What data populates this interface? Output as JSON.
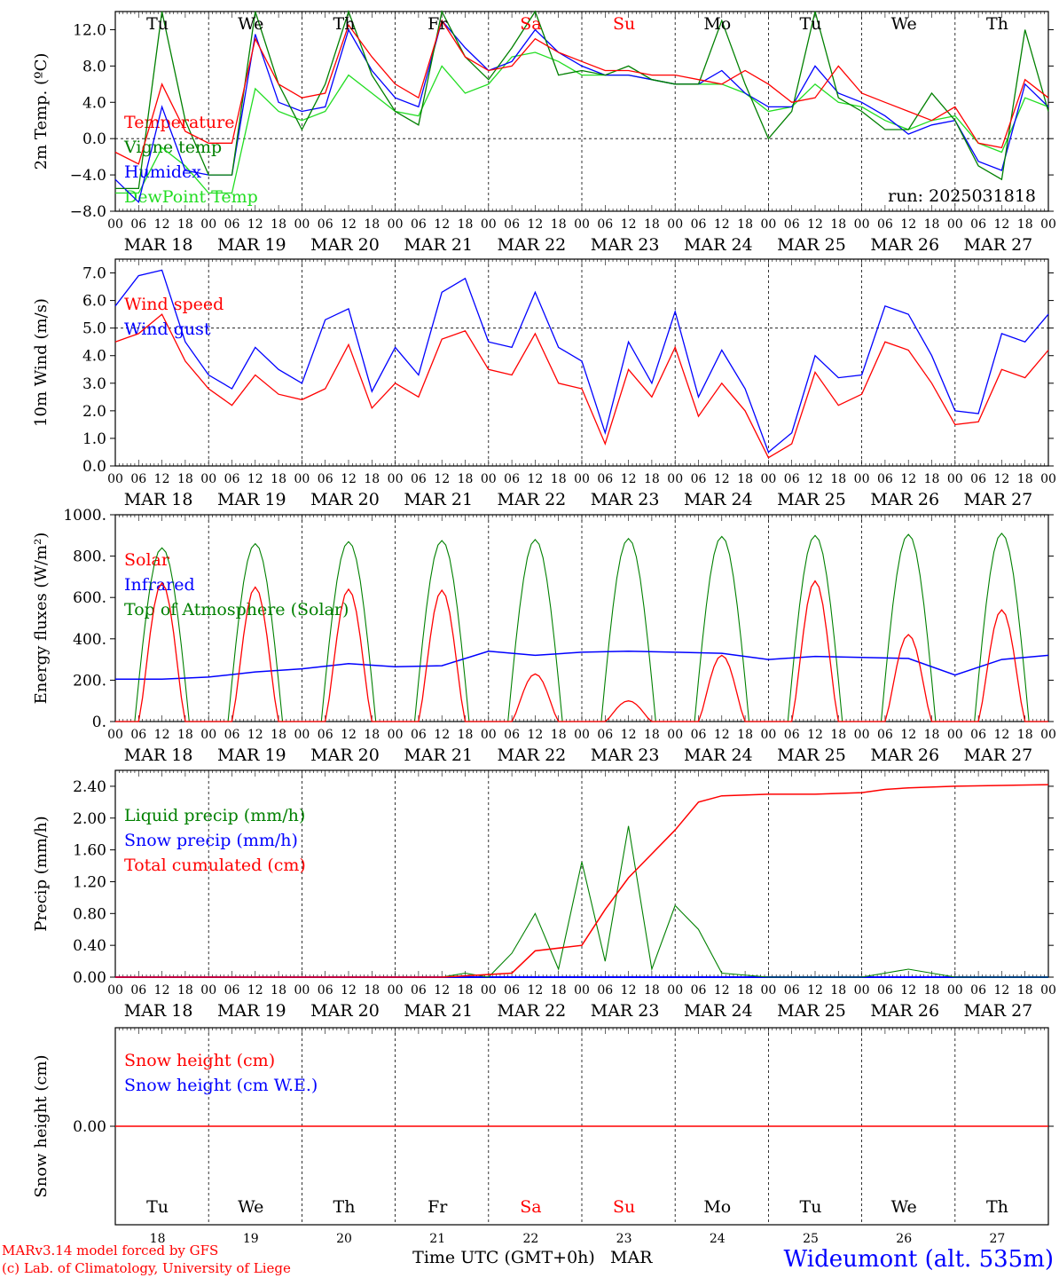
{
  "station": "Wideumont (alt. 535m)",
  "credits": [
    "MARv3.14 model forced by GFS",
    "(c) Lab. of Climatology, University of Liege"
  ],
  "run_label": "run: 2025031818",
  "x_axis_title": "Time UTC (GMT+0h)",
  "month_label": "MAR",
  "hour_ticks": [
    "00",
    "06",
    "12",
    "18"
  ],
  "day_labels": [
    "MAR 18",
    "MAR 19",
    "MAR 20",
    "MAR 21",
    "MAR 22",
    "MAR 23",
    "MAR 24",
    "MAR 25",
    "MAR 26",
    "MAR 27"
  ],
  "weekdays": [
    "Tu",
    "We",
    "Th",
    "Fr",
    "Sa",
    "Su",
    "Mo",
    "Tu",
    "We",
    "Th"
  ],
  "weekend_flags": [
    false,
    false,
    false,
    false,
    true,
    true,
    false,
    false,
    false,
    false
  ],
  "day_numbers": [
    "18",
    "19",
    "20",
    "21",
    "22",
    "23",
    "24",
    "25",
    "26",
    "27"
  ],
  "colors": {
    "red": "#ff0000",
    "green": "#008000",
    "blue": "#0000ff",
    "lightgreen": "#22dd22",
    "axis": "#000000"
  },
  "chart_data": [
    {
      "type": "line",
      "ylabel": "2m Temp. (ºC)",
      "ylim": [
        -8,
        14
      ],
      "yticks": [
        "12.0",
        "8.0",
        "4.0",
        "0.0",
        "−4.0",
        "−8.0"
      ],
      "ytick_values": [
        12,
        8,
        4,
        0,
        -4,
        -8
      ],
      "x_hours": [
        0,
        6,
        12,
        18,
        24,
        30,
        36,
        42,
        48,
        54,
        60,
        66,
        72,
        78,
        84,
        90,
        96,
        102,
        108,
        114,
        120,
        126,
        132,
        138,
        144,
        150,
        156,
        162,
        168,
        174,
        180,
        186,
        192,
        198,
        204,
        210,
        216,
        222,
        228,
        234,
        240
      ],
      "ref_line": 0,
      "series": [
        {
          "name": "Temperature",
          "color": "#ff0000",
          "values": [
            -1.5,
            -2.8,
            6,
            0.8,
            -0.5,
            -0.5,
            11,
            6,
            4.5,
            5,
            12.5,
            9,
            6,
            4.5,
            13,
            9,
            7.5,
            8,
            11,
            9.5,
            8.5,
            7.5,
            7.5,
            7,
            7,
            6.5,
            6,
            7.5,
            6,
            4,
            4.5,
            8,
            5,
            4,
            3,
            2,
            3.5,
            -0.5,
            -1,
            6.5,
            4.5
          ]
        },
        {
          "name": "Vigne temp",
          "color": "#008000",
          "values": [
            -5.5,
            -5.5,
            14,
            2,
            -4,
            -4,
            14,
            6,
            1,
            6,
            14,
            7,
            3,
            1.5,
            14,
            9,
            6.5,
            10,
            14,
            7,
            7.5,
            7,
            8,
            6.5,
            6,
            6,
            13,
            6,
            0,
            3,
            14,
            4.5,
            3,
            1,
            1,
            5,
            2,
            -3,
            -4.5,
            12,
            3
          ]
        },
        {
          "name": "Humidex",
          "color": "#0000ff",
          "values": [
            -4.5,
            -7,
            3.5,
            -3.5,
            -4,
            -4,
            11.5,
            4,
            3,
            3.5,
            12,
            7.5,
            4.5,
            3.5,
            13,
            10,
            7.5,
            8.5,
            12,
            9.5,
            8,
            7,
            7,
            6.5,
            6,
            6,
            7.5,
            5,
            3.5,
            3.5,
            8,
            5,
            4,
            2.5,
            0.5,
            1.5,
            2,
            -2.5,
            -3.5,
            6,
            3.5
          ]
        },
        {
          "name": "DewPoint Temp",
          "color": "#22dd22",
          "values": [
            -6,
            -6,
            -1,
            -3,
            -6,
            -6,
            5.5,
            3,
            2,
            3,
            7,
            5,
            3,
            2.5,
            8,
            5,
            6,
            9,
            9.5,
            8.5,
            7,
            7,
            7,
            6.5,
            6,
            6,
            6,
            5,
            3,
            3.5,
            6,
            4,
            3.5,
            2,
            1,
            2,
            2.5,
            -0.5,
            -1.5,
            4.5,
            3.5
          ]
        }
      ]
    },
    {
      "type": "line",
      "ylabel": "10m Wind (m/s)",
      "ylim": [
        0,
        7.5
      ],
      "yticks": [
        "7.0",
        "6.0",
        "5.0",
        "4.0",
        "3.0",
        "2.0",
        "1.0",
        "0.0"
      ],
      "ytick_values": [
        7,
        6,
        5,
        4,
        3,
        2,
        1,
        0
      ],
      "x_hours": [
        0,
        6,
        12,
        18,
        24,
        30,
        36,
        42,
        48,
        54,
        60,
        66,
        72,
        78,
        84,
        90,
        96,
        102,
        108,
        114,
        120,
        126,
        132,
        138,
        144,
        150,
        156,
        162,
        168,
        174,
        180,
        186,
        192,
        198,
        204,
        210,
        216,
        222,
        228,
        234,
        240
      ],
      "ref_line": 5,
      "series": [
        {
          "name": "Wind speed",
          "color": "#ff0000",
          "values": [
            4.5,
            4.8,
            5.5,
            3.8,
            2.8,
            2.2,
            3.3,
            2.6,
            2.4,
            2.8,
            4.4,
            2.1,
            3,
            2.5,
            4.6,
            4.9,
            3.5,
            3.3,
            4.8,
            3,
            2.8,
            0.8,
            3.5,
            2.5,
            4.3,
            1.8,
            3,
            2,
            0.3,
            0.8,
            3.4,
            2.2,
            2.6,
            4.5,
            4.2,
            3,
            1.5,
            1.6,
            3.5,
            3.2,
            4.2
          ]
        },
        {
          "name": "Wind gust",
          "color": "#0000ff",
          "values": [
            5.8,
            6.9,
            7.1,
            4.5,
            3.3,
            2.8,
            4.3,
            3.5,
            3,
            5.3,
            5.7,
            2.7,
            4.3,
            3.3,
            6.3,
            6.8,
            4.5,
            4.3,
            6.3,
            4.3,
            3.8,
            1.2,
            4.5,
            3,
            5.6,
            2.5,
            4.2,
            2.8,
            0.5,
            1.2,
            4,
            3.2,
            3.3,
            5.8,
            5.5,
            4,
            2,
            1.9,
            4.8,
            4.5,
            5.5
          ]
        }
      ]
    },
    {
      "type": "line",
      "ylabel": "Energy fluxes (W/m²)",
      "ylim": [
        0,
        1000
      ],
      "yticks": [
        "1000.",
        "800.",
        "600.",
        "400.",
        "200.",
        "0."
      ],
      "ytick_values": [
        1000,
        800,
        600,
        400,
        200,
        0
      ],
      "solar_day_peaks": [
        670,
        650,
        640,
        635,
        230,
        100,
        320,
        680,
        420,
        540
      ],
      "toa_day_peaks": [
        840,
        860,
        870,
        875,
        880,
        885,
        895,
        900,
        905,
        910
      ],
      "series": [
        {
          "name": "Solar",
          "color": "#ff0000"
        },
        {
          "name": "Infrared",
          "color": "#0000ff",
          "x_hours": [
            0,
            12,
            24,
            36,
            48,
            60,
            72,
            84,
            96,
            108,
            120,
            132,
            144,
            156,
            168,
            180,
            192,
            204,
            216,
            228,
            240
          ],
          "values": [
            205,
            205,
            215,
            240,
            255,
            280,
            265,
            270,
            340,
            320,
            335,
            340,
            335,
            330,
            300,
            315,
            310,
            305,
            225,
            300,
            320
          ]
        },
        {
          "name": "Top of Atmosphere (Solar)",
          "color": "#008000"
        }
      ]
    },
    {
      "type": "line",
      "ylabel": "Precip (mm/h)",
      "ylim": [
        0,
        2.6
      ],
      "yticks": [
        "2.40",
        "2.00",
        "1.60",
        "1.20",
        "0.80",
        "0.40",
        "0.00"
      ],
      "ytick_values": [
        2.4,
        2.0,
        1.6,
        1.2,
        0.8,
        0.4,
        0
      ],
      "series": [
        {
          "name": "Liquid precip (mm/h)",
          "color": "#008000",
          "x_hours": [
            0,
            84,
            90,
            96,
            102,
            108,
            114,
            120,
            126,
            132,
            138,
            144,
            150,
            156,
            168,
            192,
            204,
            216,
            240
          ],
          "values": [
            0,
            0,
            0.05,
            0,
            0.3,
            0.8,
            0.1,
            1.45,
            0.2,
            1.9,
            0.1,
            0.9,
            0.6,
            0.05,
            0,
            0,
            0.1,
            0,
            0
          ]
        },
        {
          "name": "Snow precip (mm/h)",
          "color": "#0000ff",
          "x_hours": [
            0,
            240
          ],
          "values": [
            0,
            0
          ]
        },
        {
          "name": "Total cumulated (cm)",
          "color": "#ff0000",
          "x_hours": [
            0,
            84,
            102,
            108,
            120,
            126,
            132,
            138,
            144,
            150,
            156,
            168,
            180,
            192,
            198,
            204,
            216,
            240
          ],
          "values": [
            0,
            0,
            0.05,
            0.33,
            0.4,
            0.85,
            1.25,
            1.55,
            1.85,
            2.2,
            2.28,
            2.3,
            2.3,
            2.32,
            2.36,
            2.38,
            2.4,
            2.42
          ]
        }
      ]
    },
    {
      "type": "line",
      "ylabel": "Snow height (cm)",
      "yticks": [
        "0.00"
      ],
      "ytick_values": [
        0
      ],
      "ylim": [
        -1,
        1
      ],
      "series": [
        {
          "name": "Snow height (cm)",
          "color": "#ff0000",
          "x_hours": [
            0,
            240
          ],
          "values": [
            0,
            0
          ]
        },
        {
          "name": "Snow height (cm W.E.)",
          "color": "#0000ff"
        }
      ]
    }
  ]
}
